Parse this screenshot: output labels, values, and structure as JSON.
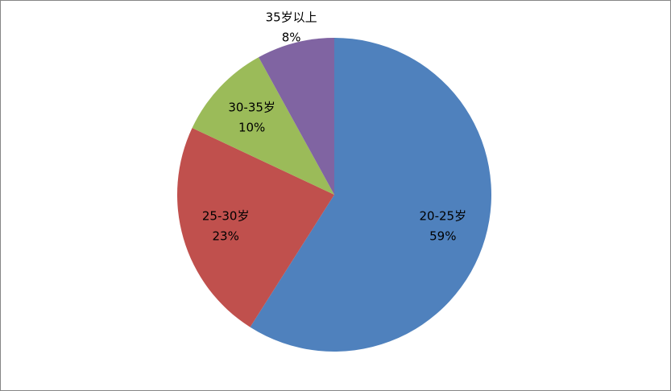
{
  "chart_data": {
    "type": "pie",
    "categories": [
      "20-25岁",
      "25-30岁",
      "30-35岁",
      "35岁以上"
    ],
    "values": [
      59,
      23,
      10,
      8
    ],
    "value_labels": [
      "59%",
      "23%",
      "10%",
      "8%"
    ],
    "colors": [
      "#4f81bd",
      "#c0504d",
      "#9bbb59",
      "#8064a2"
    ]
  }
}
